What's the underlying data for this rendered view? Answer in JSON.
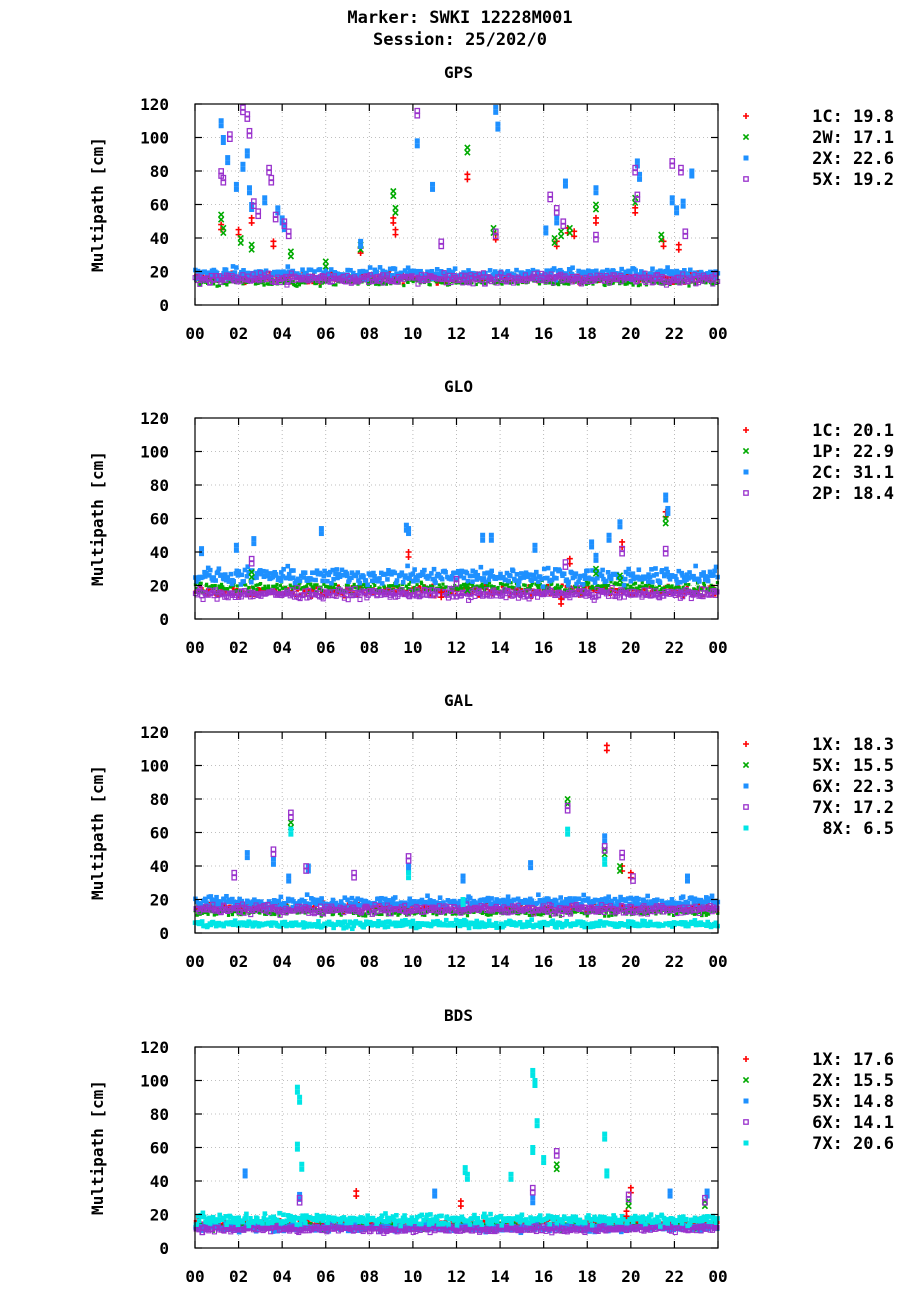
{
  "header": {
    "marker_line": "Marker: SWKI 12228M001",
    "session_line": "Session: 25/202/0"
  },
  "chart_data": [
    {
      "type": "scatter",
      "title": "GPS",
      "ylabel": "Multipath [cm]",
      "xlabel": "",
      "xlim": [
        0,
        24
      ],
      "ylim": [
        0,
        120
      ],
      "xticks": [
        "00",
        "02",
        "04",
        "06",
        "08",
        "10",
        "12",
        "14",
        "16",
        "18",
        "20",
        "22",
        "00"
      ],
      "yticks": [
        0,
        20,
        40,
        60,
        80,
        100,
        120
      ],
      "grid": true,
      "legend_position": "right",
      "series": [
        {
          "name": "1C",
          "rms": "19.8",
          "color": "#ff0000",
          "marker": "plus",
          "x": [
            1.2,
            2.0,
            2.6,
            3.6,
            7.6,
            9.1,
            9.2,
            12.5,
            13.8,
            16.6,
            17.1,
            17.4,
            18.4,
            20.2,
            21.5,
            22.2
          ],
          "y": [
            48,
            45,
            52,
            38,
            34,
            52,
            45,
            78,
            42,
            38,
            46,
            44,
            52,
            58,
            38,
            36
          ]
        },
        {
          "name": "2W",
          "rms": "17.1",
          "color": "#00aa00",
          "marker": "x",
          "x": [
            1.2,
            1.3,
            2.1,
            2.6,
            4.4,
            6.0,
            7.6,
            9.1,
            9.2,
            12.5,
            13.7,
            16.5,
            16.8,
            17.2,
            18.4,
            20.2,
            21.4
          ],
          "y": [
            54,
            46,
            40,
            36,
            32,
            26,
            36,
            68,
            58,
            94,
            46,
            40,
            44,
            46,
            60,
            64,
            42
          ]
        },
        {
          "name": "2X",
          "rms": "22.6",
          "color": "#1e90ff",
          "marker": "square",
          "x": [
            1.2,
            1.3,
            1.5,
            1.9,
            2.2,
            2.4,
            2.5,
            2.6,
            3.2,
            3.8,
            4.0,
            4.1,
            7.6,
            10.2,
            10.9,
            13.8,
            13.9,
            16.1,
            16.6,
            17.0,
            18.4,
            20.3,
            20.4,
            21.9,
            22.1,
            22.4,
            22.8
          ],
          "y": [
            110,
            100,
            88,
            72,
            84,
            92,
            70,
            60,
            64,
            58,
            52,
            48,
            38,
            98,
            72,
            118,
            108,
            46,
            52,
            74,
            70,
            86,
            78,
            64,
            58,
            62,
            80
          ]
        },
        {
          "name": "5X",
          "rms": "19.2",
          "color": "#9932cc",
          "marker": "open-square",
          "x": [
            1.2,
            1.3,
            1.6,
            2.2,
            2.4,
            2.5,
            2.7,
            2.9,
            3.4,
            3.5,
            3.7,
            4.1,
            4.3,
            10.2,
            11.3,
            13.8,
            16.3,
            16.6,
            16.9,
            18.4,
            20.2,
            20.3,
            21.9,
            22.3,
            22.5
          ],
          "y": [
            80,
            76,
            102,
            118,
            114,
            104,
            62,
            56,
            82,
            76,
            54,
            50,
            44,
            116,
            38,
            44,
            66,
            58,
            50,
            42,
            82,
            66,
            86,
            82,
            44
          ]
        }
      ]
    },
    {
      "type": "scatter",
      "title": "GLO",
      "ylabel": "Multipath [cm]",
      "xlabel": "",
      "xlim": [
        0,
        24
      ],
      "ylim": [
        0,
        120
      ],
      "xticks": [
        "00",
        "02",
        "04",
        "06",
        "08",
        "10",
        "12",
        "14",
        "16",
        "18",
        "20",
        "22",
        "00"
      ],
      "yticks": [
        0,
        20,
        40,
        60,
        80,
        100,
        120
      ],
      "grid": true,
      "legend_position": "right",
      "series": [
        {
          "name": "1C",
          "rms": "20.1",
          "color": "#ff0000",
          "marker": "plus",
          "x": [
            9.8,
            11.3,
            16.8,
            17.2,
            19.6,
            21.6
          ],
          "y": [
            40,
            16,
            12,
            36,
            46,
            64
          ]
        },
        {
          "name": "1P",
          "rms": "22.9",
          "color": "#00aa00",
          "marker": "x",
          "x": [
            2.6,
            12.5,
            18.4,
            19.5,
            21.6
          ],
          "y": [
            28,
            20,
            30,
            26,
            60
          ]
        },
        {
          "name": "2C",
          "rms": "31.1",
          "color": "#1e90ff",
          "marker": "square",
          "x": [
            0.3,
            1.9,
            2.7,
            5.8,
            9.7,
            9.8,
            13.2,
            13.6,
            15.6,
            18.2,
            18.4,
            19.0,
            19.5,
            21.6,
            21.7
          ],
          "y": [
            42,
            44,
            48,
            54,
            56,
            54,
            50,
            50,
            44,
            46,
            38,
            50,
            58,
            74,
            66
          ]
        },
        {
          "name": "2P",
          "rms": "18.4",
          "color": "#9932cc",
          "marker": "open-square",
          "x": [
            2.6,
            12.0,
            17.0,
            19.6,
            21.6
          ],
          "y": [
            36,
            24,
            34,
            42,
            42
          ]
        }
      ]
    },
    {
      "type": "scatter",
      "title": "GAL",
      "ylabel": "Multipath [cm]",
      "xlabel": "",
      "xlim": [
        0,
        24
      ],
      "ylim": [
        0,
        120
      ],
      "xticks": [
        "00",
        "02",
        "04",
        "06",
        "08",
        "10",
        "12",
        "14",
        "16",
        "18",
        "20",
        "22",
        "00"
      ],
      "yticks": [
        0,
        20,
        40,
        60,
        80,
        100,
        120
      ],
      "grid": true,
      "legend_position": "right",
      "series": [
        {
          "name": "1X",
          "rms": "18.3",
          "color": "#ff0000",
          "marker": "plus",
          "x": [
            18.9,
            19.6,
            20.0
          ],
          "y": [
            112,
            40,
            36
          ]
        },
        {
          "name": "5X",
          "rms": "15.5",
          "color": "#00aa00",
          "marker": "x",
          "x": [
            4.4,
            17.1,
            18.8,
            19.5
          ],
          "y": [
            66,
            80,
            50,
            40
          ]
        },
        {
          "name": "6X",
          "rms": "22.3",
          "color": "#1e90ff",
          "marker": "square",
          "x": [
            2.4,
            3.6,
            4.3,
            5.2,
            9.8,
            12.3,
            15.4,
            18.8,
            22.6
          ],
          "y": [
            48,
            44,
            34,
            40,
            40,
            34,
            42,
            58,
            34
          ]
        },
        {
          "name": "7X",
          "rms": "17.2",
          "color": "#9932cc",
          "marker": "open-square",
          "x": [
            1.8,
            3.6,
            4.4,
            5.1,
            7.3,
            9.8,
            17.1,
            18.8,
            19.6,
            20.1
          ],
          "y": [
            36,
            50,
            72,
            40,
            36,
            46,
            76,
            52,
            48,
            34
          ]
        },
        {
          "name": "8X",
          "rms": "6.5",
          "color": "#00e5e5",
          "marker": "square",
          "x": [
            4.4,
            9.8,
            12.3,
            17.1,
            18.8
          ],
          "y": [
            62,
            36,
            20,
            62,
            44
          ]
        }
      ]
    },
    {
      "type": "scatter",
      "title": "BDS",
      "ylabel": "Multipath [cm]",
      "xlabel": "",
      "xlim": [
        0,
        24
      ],
      "ylim": [
        0,
        120
      ],
      "xticks": [
        "00",
        "02",
        "04",
        "06",
        "08",
        "10",
        "12",
        "14",
        "16",
        "18",
        "20",
        "22",
        "00"
      ],
      "yticks": [
        0,
        20,
        40,
        60,
        80,
        100,
        120
      ],
      "grid": true,
      "legend_position": "right",
      "series": [
        {
          "name": "1X",
          "rms": "17.6",
          "color": "#ff0000",
          "marker": "plus",
          "x": [
            7.4,
            12.2,
            19.8,
            20.0
          ],
          "y": [
            34,
            28,
            22,
            36
          ]
        },
        {
          "name": "2X",
          "rms": "15.5",
          "color": "#00aa00",
          "marker": "x",
          "x": [
            16.6,
            19.9,
            23.4
          ],
          "y": [
            50,
            28,
            28
          ]
        },
        {
          "name": "5X",
          "rms": "14.8",
          "color": "#1e90ff",
          "marker": "square",
          "x": [
            2.3,
            4.8,
            11.0,
            15.5,
            21.8,
            23.5
          ],
          "y": [
            46,
            32,
            34,
            30,
            34,
            34
          ]
        },
        {
          "name": "6X",
          "rms": "14.1",
          "color": "#9932cc",
          "marker": "open-square",
          "x": [
            4.8,
            15.5,
            16.6,
            19.9,
            23.4
          ],
          "y": [
            30,
            36,
            58,
            32,
            30
          ]
        },
        {
          "name": "7X",
          "rms": "20.6",
          "color": "#00e5e5",
          "marker": "square",
          "x": [
            4.7,
            4.8,
            4.7,
            4.9,
            12.4,
            12.5,
            14.5,
            15.5,
            15.6,
            15.7,
            15.5,
            16.0,
            18.8,
            18.9
          ],
          "y": [
            96,
            90,
            62,
            50,
            48,
            44,
            44,
            106,
            100,
            76,
            60,
            54,
            68,
            46
          ]
        }
      ]
    }
  ]
}
